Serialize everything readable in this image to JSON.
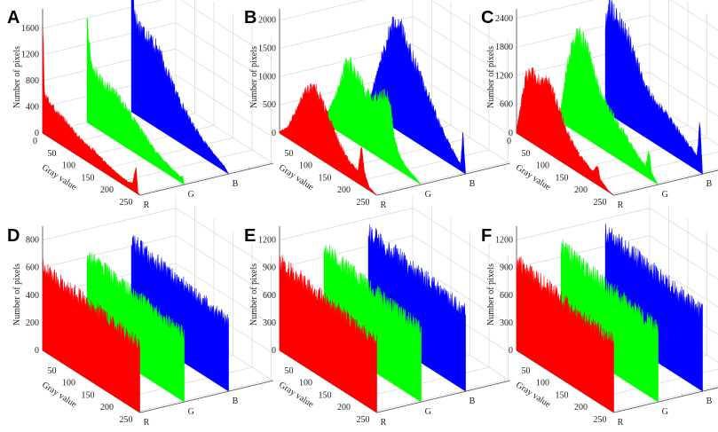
{
  "figure": {
    "description_free": true
  },
  "chart_data": [
    {
      "panel": "A",
      "type": "area",
      "ylabel": "Number of pixels",
      "xlabel": "Gray value",
      "channel_labels": [
        "R",
        "G",
        "B"
      ],
      "xticks": [
        0,
        50,
        100,
        150,
        200,
        250
      ],
      "yticks": [
        0,
        400,
        800,
        1200,
        1600
      ],
      "ylim": [
        0,
        1900
      ],
      "colors": [
        "#ff0000",
        "#00ff00",
        "#0000ff"
      ],
      "series": [
        {
          "name": "R",
          "spike": {
            "x": 2,
            "y": 1750
          },
          "points": [
            [
              0,
              1750
            ],
            [
              5,
              600
            ],
            [
              15,
              560
            ],
            [
              30,
              480
            ],
            [
              50,
              440
            ],
            [
              70,
              380
            ],
            [
              90,
              300
            ],
            [
              110,
              260
            ],
            [
              130,
              240
            ],
            [
              150,
              200
            ],
            [
              170,
              150
            ],
            [
              190,
              120
            ],
            [
              210,
              100
            ],
            [
              225,
              90
            ],
            [
              235,
              110
            ],
            [
              245,
              420
            ],
            [
              250,
              30
            ],
            [
              255,
              0
            ]
          ]
        },
        {
          "name": "G",
          "spike": {
            "x": 3,
            "y": 1700
          },
          "points": [
            [
              0,
              1700
            ],
            [
              5,
              1300
            ],
            [
              10,
              1000
            ],
            [
              20,
              860
            ],
            [
              40,
              760
            ],
            [
              60,
              740
            ],
            [
              80,
              700
            ],
            [
              100,
              620
            ],
            [
              120,
              520
            ],
            [
              140,
              420
            ],
            [
              160,
              320
            ],
            [
              180,
              230
            ],
            [
              200,
              180
            ],
            [
              220,
              130
            ],
            [
              235,
              100
            ],
            [
              245,
              80
            ],
            [
              250,
              120
            ],
            [
              255,
              0
            ]
          ]
        },
        {
          "name": "B",
          "spike": {
            "x": 3,
            "y": 2000
          },
          "points": [
            [
              0,
              2000
            ],
            [
              8,
              1600
            ],
            [
              15,
              1400
            ],
            [
              30,
              1360
            ],
            [
              50,
              1300
            ],
            [
              70,
              1200
            ],
            [
              90,
              1000
            ],
            [
              110,
              800
            ],
            [
              130,
              620
            ],
            [
              150,
              480
            ],
            [
              170,
              360
            ],
            [
              190,
              260
            ],
            [
              210,
              180
            ],
            [
              230,
              120
            ],
            [
              245,
              70
            ],
            [
              255,
              0
            ]
          ]
        }
      ]
    },
    {
      "panel": "B",
      "type": "area",
      "ylabel": "Number of pixels",
      "xlabel": "Gray value",
      "channel_labels": [
        "R",
        "G",
        "B"
      ],
      "xticks": [
        50,
        100,
        150,
        200,
        250
      ],
      "yticks": [
        0,
        500,
        1000,
        1500,
        2000
      ],
      "ylim": [
        0,
        2200
      ],
      "colors": [
        "#ff0000",
        "#00ff00",
        "#0000ff"
      ],
      "series": [
        {
          "name": "R",
          "points": [
            [
              0,
              30
            ],
            [
              20,
              180
            ],
            [
              40,
              520
            ],
            [
              60,
              900
            ],
            [
              80,
              1150
            ],
            [
              95,
              1180
            ],
            [
              110,
              1050
            ],
            [
              130,
              820
            ],
            [
              150,
              580
            ],
            [
              170,
              380
            ],
            [
              190,
              260
            ],
            [
              205,
              220
            ],
            [
              215,
              700
            ],
            [
              222,
              280
            ],
            [
              235,
              60
            ],
            [
              255,
              0
            ]
          ]
        },
        {
          "name": "G",
          "points": [
            [
              0,
              40
            ],
            [
              20,
              400
            ],
            [
              40,
              800
            ],
            [
              55,
              1250
            ],
            [
              70,
              1320
            ],
            [
              90,
              1200
            ],
            [
              110,
              1000
            ],
            [
              130,
              1000
            ],
            [
              150,
              1100
            ],
            [
              165,
              1200
            ],
            [
              175,
              1050
            ],
            [
              185,
              500
            ],
            [
              200,
              250
            ],
            [
              220,
              120
            ],
            [
              240,
              60
            ],
            [
              255,
              0
            ]
          ]
        },
        {
          "name": "B",
          "points": [
            [
              0,
              80
            ],
            [
              20,
              700
            ],
            [
              40,
              1250
            ],
            [
              60,
              1750
            ],
            [
              75,
              1950
            ],
            [
              90,
              1800
            ],
            [
              110,
              1550
            ],
            [
              130,
              1300
            ],
            [
              150,
              1050
            ],
            [
              170,
              800
            ],
            [
              190,
              560
            ],
            [
              210,
              360
            ],
            [
              230,
              200
            ],
            [
              242,
              120
            ],
            [
              248,
              700
            ],
            [
              255,
              0
            ]
          ]
        }
      ]
    },
    {
      "panel": "C",
      "type": "area",
      "ylabel": "Number of pixels",
      "xlabel": "Gray value",
      "channel_labels": [
        "R",
        "G",
        "B"
      ],
      "xticks": [
        0,
        50,
        100,
        150,
        200,
        250
      ],
      "yticks": [
        0,
        600,
        1200,
        1800,
        2400
      ],
      "ylim": [
        0,
        2600
      ],
      "colors": [
        "#ff0000",
        "#00ff00",
        "#0000ff"
      ],
      "series": [
        {
          "name": "R",
          "points": [
            [
              0,
              80
            ],
            [
              10,
              600
            ],
            [
              25,
              1300
            ],
            [
              40,
              1450
            ],
            [
              55,
              1400
            ],
            [
              70,
              1450
            ],
            [
              85,
              1500
            ],
            [
              100,
              1250
            ],
            [
              120,
              900
            ],
            [
              140,
              620
            ],
            [
              160,
              420
            ],
            [
              180,
              300
            ],
            [
              200,
              220
            ],
            [
              212,
              400
            ],
            [
              220,
              150
            ],
            [
              240,
              30
            ],
            [
              255,
              0
            ]
          ]
        },
        {
          "name": "G",
          "points": [
            [
              0,
              300
            ],
            [
              15,
              1200
            ],
            [
              30,
              1800
            ],
            [
              45,
              2050
            ],
            [
              60,
              2000
            ],
            [
              75,
              1800
            ],
            [
              90,
              1400
            ],
            [
              110,
              1050
            ],
            [
              130,
              900
            ],
            [
              150,
              720
            ],
            [
              170,
              600
            ],
            [
              190,
              420
            ],
            [
              210,
              280
            ],
            [
              222,
              220
            ],
            [
              230,
              600
            ],
            [
              238,
              150
            ],
            [
              255,
              0
            ]
          ]
        },
        {
          "name": "B",
          "points": [
            [
              0,
              1800
            ],
            [
              10,
              2300
            ],
            [
              20,
              2200
            ],
            [
              40,
              2050
            ],
            [
              60,
              1900
            ],
            [
              80,
              1500
            ],
            [
              100,
              1150
            ],
            [
              120,
              950
            ],
            [
              140,
              850
            ],
            [
              160,
              760
            ],
            [
              180,
              660
            ],
            [
              200,
              540
            ],
            [
              220,
              420
            ],
            [
              240,
              300
            ],
            [
              248,
              1050
            ],
            [
              255,
              0
            ]
          ]
        }
      ]
    },
    {
      "panel": "D",
      "type": "area",
      "ylabel": "Number of pixels",
      "xlabel": "Gray value",
      "channel_labels": [
        "R",
        "G",
        "B"
      ],
      "xticks": [
        50,
        100,
        150,
        200,
        250
      ],
      "yticks": [
        0,
        200,
        400,
        600,
        800
      ],
      "ylim": [
        0,
        900
      ],
      "colors": [
        "#ff0000",
        "#00ff00",
        "#0000ff"
      ],
      "series": [
        {
          "name": "R",
          "points": [
            [
              0,
              600
            ],
            [
              50,
              580
            ],
            [
              100,
              560
            ],
            [
              150,
              540
            ],
            [
              200,
              510
            ],
            [
              255,
              490
            ]
          ]
        },
        {
          "name": "G",
          "points": [
            [
              0,
              600
            ],
            [
              50,
              580
            ],
            [
              100,
              560
            ],
            [
              150,
              540
            ],
            [
              200,
              510
            ],
            [
              255,
              490
            ]
          ]
        },
        {
          "name": "B",
          "points": [
            [
              0,
              640
            ],
            [
              50,
              610
            ],
            [
              100,
              580
            ],
            [
              150,
              560
            ],
            [
              200,
              530
            ],
            [
              255,
              500
            ]
          ]
        }
      ]
    },
    {
      "panel": "E",
      "type": "area",
      "ylabel": "Number of pixels",
      "xlabel": "Gray value",
      "channel_labels": [
        "R",
        "G",
        "B"
      ],
      "xticks": [
        50,
        100,
        150,
        200,
        250
      ],
      "yticks": [
        0,
        300,
        600,
        900,
        1200
      ],
      "ylim": [
        0,
        1350
      ],
      "colors": [
        "#ff0000",
        "#00ff00",
        "#0000ff"
      ],
      "series": [
        {
          "name": "R",
          "points": [
            [
              0,
              960
            ],
            [
              50,
              920
            ],
            [
              100,
              880
            ],
            [
              150,
              840
            ],
            [
              200,
              800
            ],
            [
              255,
              770
            ]
          ]
        },
        {
          "name": "G",
          "points": [
            [
              0,
              980
            ],
            [
              50,
              940
            ],
            [
              100,
              900
            ],
            [
              150,
              860
            ],
            [
              200,
              820
            ],
            [
              255,
              790
            ]
          ]
        },
        {
          "name": "B",
          "points": [
            [
              0,
              1060
            ],
            [
              50,
              1020
            ],
            [
              100,
              980
            ],
            [
              150,
              940
            ],
            [
              200,
              900
            ],
            [
              255,
              860
            ]
          ]
        }
      ]
    },
    {
      "panel": "F",
      "type": "area",
      "ylabel": "Number of pixels",
      "xlabel": "Gray value",
      "channel_labels": [
        "R",
        "G",
        "B"
      ],
      "xticks": [
        50,
        100,
        150,
        200,
        250
      ],
      "yticks": [
        0,
        300,
        600,
        900,
        1200
      ],
      "ylim": [
        0,
        1350
      ],
      "colors": [
        "#ff0000",
        "#00ff00",
        "#0000ff"
      ],
      "series": [
        {
          "name": "R",
          "points": [
            [
              0,
              960
            ],
            [
              50,
              920
            ],
            [
              100,
              880
            ],
            [
              150,
              840
            ],
            [
              200,
              800
            ],
            [
              255,
              770
            ]
          ]
        },
        {
          "name": "G",
          "points": [
            [
              0,
              1000
            ],
            [
              50,
              960
            ],
            [
              100,
              920
            ],
            [
              150,
              880
            ],
            [
              200,
              840
            ],
            [
              255,
              800
            ]
          ]
        },
        {
          "name": "B",
          "points": [
            [
              0,
              1060
            ],
            [
              50,
              1020
            ],
            [
              100,
              980
            ],
            [
              150,
              940
            ],
            [
              200,
              900
            ],
            [
              255,
              860
            ]
          ]
        }
      ]
    }
  ]
}
